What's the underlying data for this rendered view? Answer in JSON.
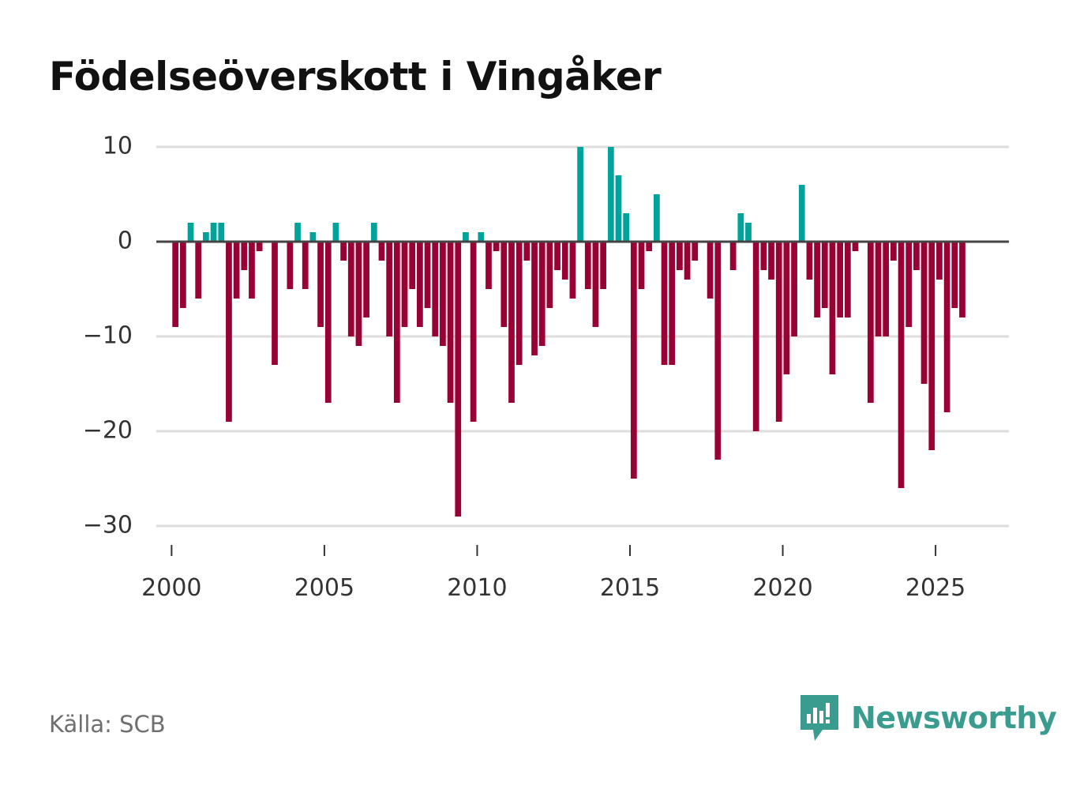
{
  "title": "Födelseöverskott i Vingåker",
  "source": "Källa: SCB",
  "brand": "Newsworthy",
  "colors": {
    "positive": "#00a39a",
    "negative": "#990033",
    "grid": "#dddddd",
    "zero": "#444444",
    "brand": "#3a9c8e"
  },
  "chart_data": {
    "type": "bar",
    "title": "Födelseöverskott i Vingåker",
    "xlabel": "",
    "ylabel": "",
    "ylim": [
      -33,
      10.5
    ],
    "xlim": [
      1999.5,
      2027.4
    ],
    "yticks": [
      10,
      0,
      -10,
      -20,
      -30
    ],
    "ytick_labels": [
      "10",
      "0",
      "−10",
      "−20",
      "−30"
    ],
    "xticks": [
      2000,
      2005,
      2010,
      2015,
      2020,
      2025
    ],
    "xtick_labels": [
      "2000",
      "2005",
      "2010",
      "2015",
      "2020",
      "2025"
    ],
    "grid": true,
    "series": [
      {
        "name": "Födelseöverskott",
        "x": [
          2000.125,
          2000.375,
          2000.625,
          2000.875,
          2001.125,
          2001.375,
          2001.625,
          2001.875,
          2002.125,
          2002.375,
          2002.625,
          2002.875,
          2003.125,
          2003.375,
          2003.625,
          2003.875,
          2004.125,
          2004.375,
          2004.625,
          2004.875,
          2005.125,
          2005.375,
          2005.625,
          2005.875,
          2006.125,
          2006.375,
          2006.625,
          2006.875,
          2007.125,
          2007.375,
          2007.625,
          2007.875,
          2008.125,
          2008.375,
          2008.625,
          2008.875,
          2009.125,
          2009.375,
          2009.625,
          2009.875,
          2010.125,
          2010.375,
          2010.625,
          2010.875,
          2011.125,
          2011.375,
          2011.625,
          2011.875,
          2012.125,
          2012.375,
          2012.625,
          2012.875,
          2013.125,
          2013.375,
          2013.625,
          2013.875,
          2014.125,
          2014.375,
          2014.625,
          2014.875,
          2015.125,
          2015.375,
          2015.625,
          2015.875,
          2016.125,
          2016.375,
          2016.625,
          2016.875,
          2017.125,
          2017.375,
          2017.625,
          2017.875,
          2018.125,
          2018.375,
          2018.625,
          2018.875,
          2019.125,
          2019.375,
          2019.625,
          2019.875,
          2020.125,
          2020.375,
          2020.625,
          2020.875,
          2021.125,
          2021.375,
          2021.625,
          2021.875,
          2022.125,
          2022.375,
          2022.625,
          2022.875,
          2023.125,
          2023.375,
          2023.625,
          2023.875,
          2024.125,
          2024.375,
          2024.625,
          2024.875,
          2025.125,
          2025.375,
          2025.625,
          2025.875
        ],
        "values": [
          -9,
          -7,
          2,
          -6,
          1,
          2,
          2,
          -19,
          -6,
          -3,
          -6,
          -1,
          0,
          -13,
          0,
          -5,
          2,
          -5,
          1,
          -9,
          -17,
          2,
          -2,
          -10,
          -11,
          -8,
          2,
          -2,
          -10,
          -17,
          -9,
          -5,
          -9,
          -7,
          -10,
          -11,
          -17,
          -29,
          1,
          -19,
          1,
          -5,
          -1,
          -9,
          -17,
          -13,
          -2,
          -12,
          -11,
          -7,
          -3,
          -4,
          -6,
          10,
          -5,
          -9,
          -5,
          10,
          7,
          3,
          -25,
          -5,
          -1,
          5,
          -13,
          -13,
          -3,
          -4,
          -2,
          0,
          -6,
          -23,
          0,
          -3,
          3,
          2,
          -20,
          -3,
          -4,
          -19,
          -14,
          -10,
          6,
          -4,
          -8,
          -7,
          -14,
          -8,
          -8,
          -1,
          0,
          -17,
          -10,
          -10,
          -2,
          -26,
          -9,
          -3,
          -15,
          -22,
          -4,
          -18,
          -7,
          -8
        ]
      }
    ]
  }
}
